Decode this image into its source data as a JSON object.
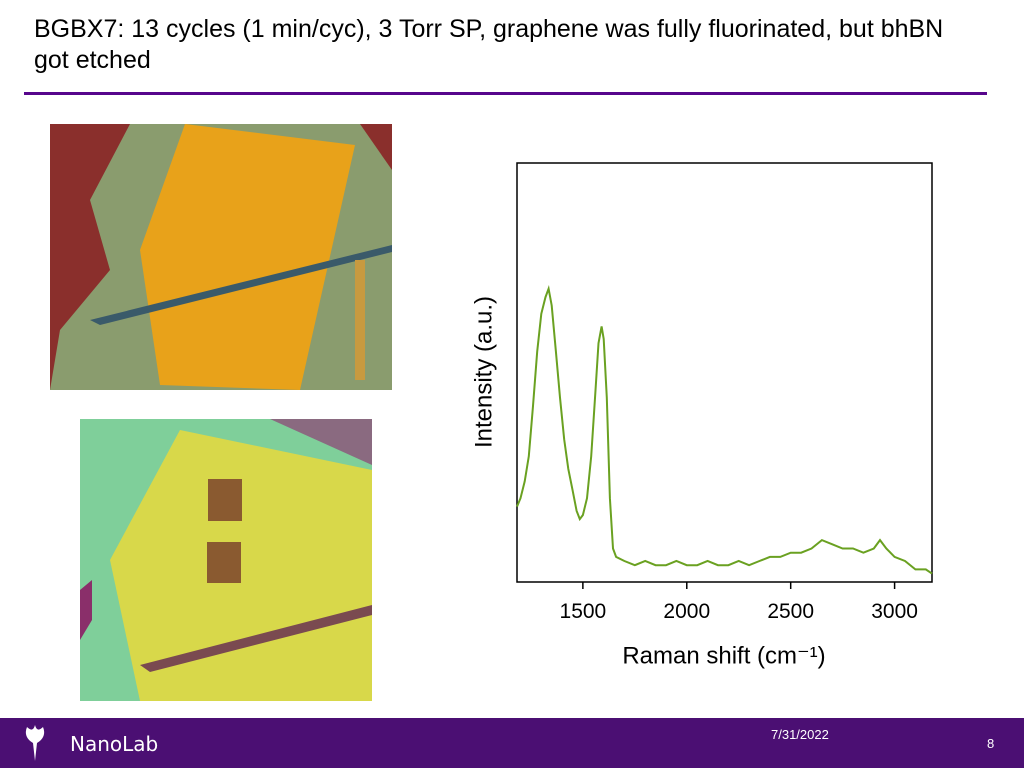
{
  "title": "BGBX7: 13 cycles (1 min/cyc), 3 Torr SP, graphene was fully fluorinated, but bhBN got etched",
  "footer": {
    "brand": "NanoLab",
    "date": "7/31/2022",
    "page": "8"
  },
  "chart_data": {
    "type": "line",
    "x_label": "Raman shift (cm⁻¹)",
    "y_label": "Intensity (a.u.)",
    "color": "#6aa121",
    "xlim": [
      1183,
      3180
    ],
    "ylim": [
      0,
      1
    ],
    "xticks": [
      1500,
      2000,
      2500,
      3000
    ],
    "x": [
      1183,
      1200,
      1220,
      1240,
      1260,
      1280,
      1300,
      1320,
      1335,
      1350,
      1370,
      1390,
      1410,
      1430,
      1450,
      1470,
      1485,
      1500,
      1520,
      1540,
      1560,
      1575,
      1590,
      1600,
      1615,
      1630,
      1645,
      1660,
      1700,
      1750,
      1800,
      1850,
      1900,
      1950,
      2000,
      2050,
      2100,
      2150,
      2200,
      2250,
      2300,
      2350,
      2400,
      2450,
      2500,
      2550,
      2600,
      2650,
      2700,
      2750,
      2800,
      2850,
      2900,
      2930,
      2960,
      3000,
      3050,
      3100,
      3150,
      3180
    ],
    "values": [
      0.18,
      0.2,
      0.24,
      0.3,
      0.42,
      0.55,
      0.64,
      0.68,
      0.7,
      0.66,
      0.55,
      0.44,
      0.34,
      0.27,
      0.22,
      0.17,
      0.15,
      0.16,
      0.2,
      0.3,
      0.45,
      0.57,
      0.61,
      0.58,
      0.44,
      0.2,
      0.08,
      0.06,
      0.05,
      0.04,
      0.05,
      0.04,
      0.04,
      0.05,
      0.04,
      0.04,
      0.05,
      0.04,
      0.04,
      0.05,
      0.04,
      0.05,
      0.06,
      0.06,
      0.07,
      0.07,
      0.08,
      0.1,
      0.09,
      0.08,
      0.08,
      0.07,
      0.08,
      0.1,
      0.08,
      0.06,
      0.05,
      0.03,
      0.03,
      0.02
    ]
  }
}
